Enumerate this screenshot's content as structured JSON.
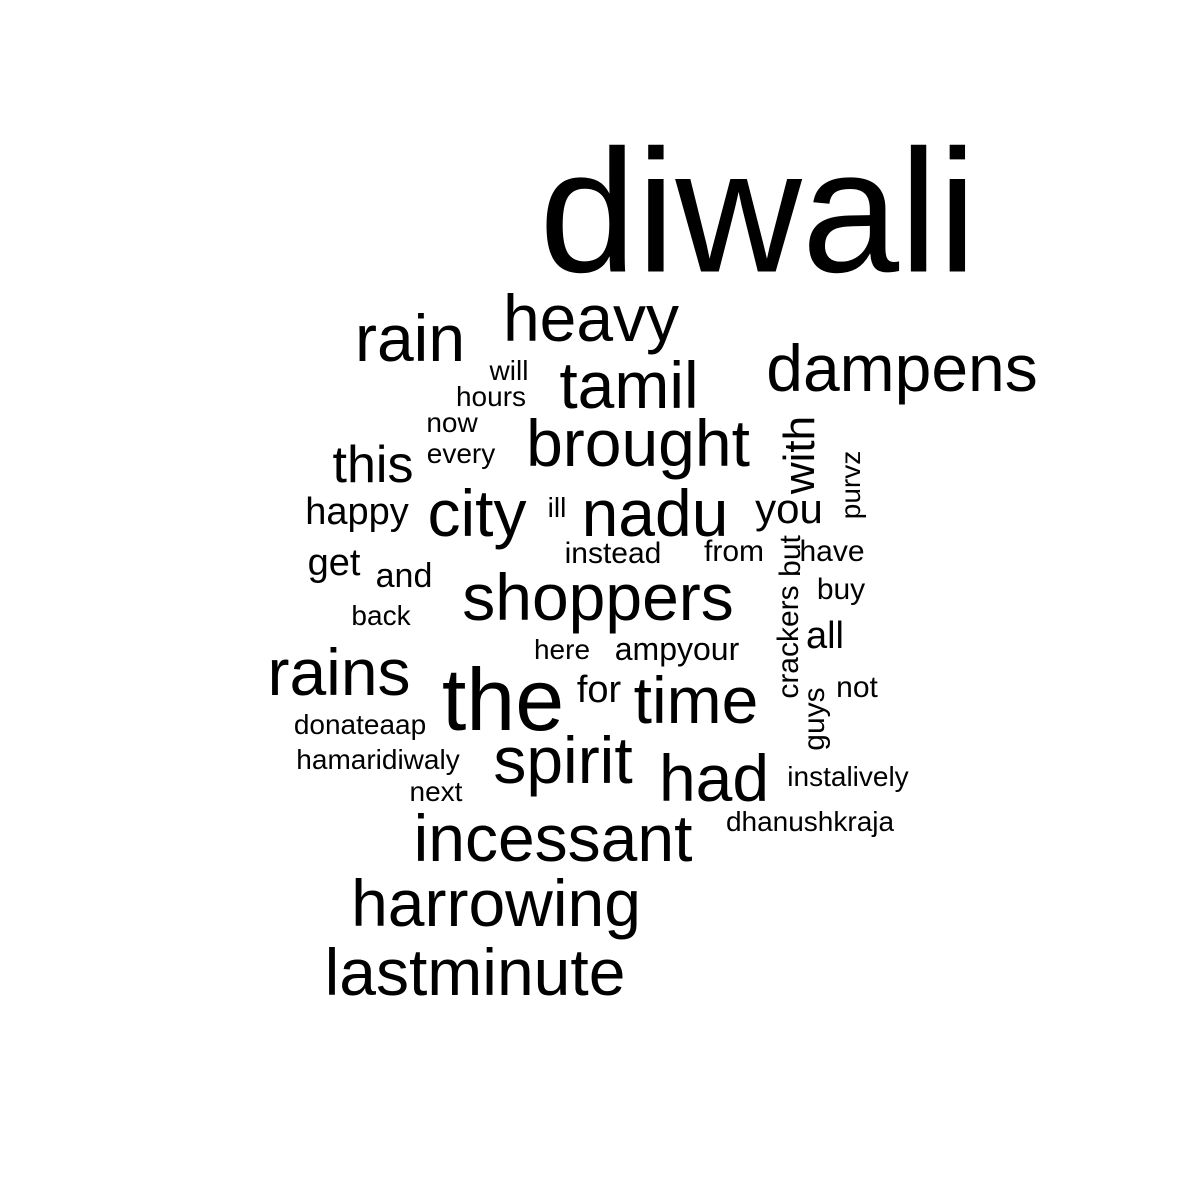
{
  "words": [
    "diwali",
    "heavy",
    "rain",
    "dampens",
    "tamil",
    "will",
    "hours",
    "now",
    "brought",
    "with",
    "purvz",
    "this",
    "every",
    "city",
    "nadu",
    "ill",
    "happy",
    "you",
    "instead",
    "from",
    "but",
    "have",
    "get",
    "and",
    "shoppers",
    "crackers",
    "buy",
    "back",
    "all",
    "here",
    "ampyour",
    "rains",
    "the",
    "for",
    "time",
    "not",
    "guys",
    "donateaap",
    "spirit",
    "hamaridiwaly",
    "had",
    "instalively",
    "next",
    "dhanushkraja",
    "incessant",
    "harrowing",
    "lastminute"
  ]
}
